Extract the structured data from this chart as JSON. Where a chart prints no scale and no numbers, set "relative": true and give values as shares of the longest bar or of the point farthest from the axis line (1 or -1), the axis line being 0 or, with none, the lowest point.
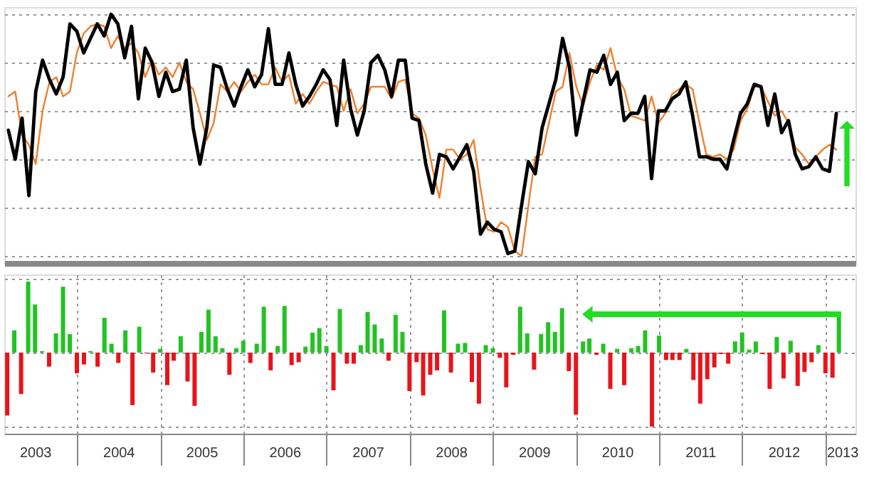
{
  "chart_data": [
    {
      "type": "line",
      "relative": true,
      "grid": "y",
      "tick_labels": false,
      "categories": [
        null,
        null,
        null,
        null,
        null,
        null,
        null,
        null,
        null,
        null,
        null,
        null,
        null,
        null,
        null,
        null,
        null,
        null,
        null,
        null,
        null,
        null,
        null,
        null,
        null,
        null,
        null,
        null,
        null,
        null,
        null,
        null,
        null,
        null,
        null,
        null,
        null,
        null,
        null,
        null,
        null,
        null,
        null,
        null,
        null,
        null,
        null,
        null,
        null,
        null,
        null,
        null,
        null,
        null,
        null,
        null,
        null,
        null,
        null,
        null,
        null,
        null,
        null,
        null,
        null,
        null,
        null,
        null,
        null,
        null,
        null,
        null,
        null,
        null,
        null,
        null,
        null,
        null,
        null,
        null,
        null,
        null,
        null,
        null,
        null,
        null,
        null,
        null,
        null,
        null,
        null,
        null,
        null,
        null,
        null,
        null,
        null,
        null,
        null,
        null,
        null,
        null,
        null,
        null,
        null,
        null,
        null,
        null,
        null,
        null,
        null,
        null,
        null,
        null,
        null,
        null,
        null,
        null,
        null,
        null,
        null,
        null
      ],
      "series": [
        {
          "color": "#f07f2c",
          "values": [
            0.66,
            0.68,
            0.5,
            0.46,
            0.38,
            0.6,
            0.72,
            0.74,
            0.66,
            0.68,
            0.84,
            0.92,
            0.95,
            0.96,
            0.95,
            0.86,
            0.91,
            0.86,
            0.88,
            0.84,
            0.74,
            0.81,
            0.75,
            0.78,
            0.74,
            0.8,
            0.72,
            0.69,
            0.59,
            0.48,
            0.55,
            0.71,
            0.68,
            0.72,
            0.68,
            0.72,
            0.75,
            0.71,
            0.71,
            0.78,
            0.72,
            0.75,
            0.63,
            0.67,
            0.63,
            0.68,
            0.72,
            0.71,
            0.7,
            0.6,
            0.69,
            0.59,
            0.63,
            0.7,
            0.7,
            0.7,
            0.65,
            0.72,
            0.73,
            0.59,
            0.57,
            0.5,
            0.36,
            0.24,
            0.44,
            0.44,
            0.4,
            0.42,
            0.48,
            0.28,
            0.11,
            0.1,
            0.14,
            0.12,
            0.02,
            0.0,
            0.21,
            0.41,
            0.42,
            0.55,
            0.68,
            0.7,
            0.84,
            0.7,
            0.62,
            0.72,
            0.79,
            0.77,
            0.86,
            0.74,
            0.69,
            0.58,
            0.57,
            0.56,
            0.66,
            0.55,
            0.59,
            0.67,
            0.69,
            0.71,
            0.69,
            0.55,
            0.42,
            0.41,
            0.42,
            0.4,
            0.44,
            0.56,
            0.61,
            0.7,
            0.7,
            0.64,
            0.58,
            0.6,
            0.55,
            0.45,
            0.42,
            0.38,
            0.41,
            0.44,
            0.46,
            0.44
          ]
        },
        {
          "color": "#000000",
          "values": [
            0.52,
            0.4,
            0.57,
            0.25,
            0.68,
            0.81,
            0.73,
            0.67,
            0.74,
            0.96,
            0.93,
            0.84,
            0.9,
            0.96,
            0.91,
            1.0,
            0.96,
            0.82,
            0.95,
            0.65,
            0.86,
            0.8,
            0.66,
            0.76,
            0.68,
            0.69,
            0.81,
            0.53,
            0.38,
            0.53,
            0.79,
            0.78,
            0.69,
            0.62,
            0.7,
            0.77,
            0.7,
            0.75,
            0.94,
            0.71,
            0.71,
            0.84,
            0.71,
            0.62,
            0.66,
            0.71,
            0.77,
            0.73,
            0.54,
            0.81,
            0.61,
            0.5,
            0.6,
            0.8,
            0.83,
            0.77,
            0.66,
            0.81,
            0.81,
            0.57,
            0.56,
            0.38,
            0.26,
            0.42,
            0.41,
            0.36,
            0.41,
            0.46,
            0.35,
            0.09,
            0.14,
            0.11,
            0.1,
            0.01,
            0.02,
            0.21,
            0.39,
            0.34,
            0.53,
            0.63,
            0.73,
            0.9,
            0.78,
            0.5,
            0.64,
            0.77,
            0.76,
            0.83,
            0.71,
            0.76,
            0.56,
            0.59,
            0.59,
            0.66,
            0.32,
            0.6,
            0.6,
            0.65,
            0.67,
            0.72,
            0.58,
            0.41,
            0.41,
            0.4,
            0.4,
            0.36,
            0.48,
            0.59,
            0.63,
            0.71,
            0.7,
            0.54,
            0.67,
            0.51,
            0.56,
            0.42,
            0.36,
            0.37,
            0.41,
            0.36,
            0.35,
            0.59
          ]
        }
      ]
    },
    {
      "type": "bar",
      "relative": true,
      "grid": true,
      "tick_labels": "x",
      "x": [
        "2003-03",
        "2003-04",
        "2003-05",
        "2003-06",
        "2003-07",
        "2003-08",
        "2003-09",
        "2003-10",
        "2003-11",
        "2003-12",
        "2004-01",
        "2004-02",
        "2004-03",
        "2004-04",
        "2004-05",
        "2004-06",
        "2004-07",
        "2004-08",
        "2004-09",
        "2004-10",
        "2004-11",
        "2004-12",
        "2005-01",
        "2005-02",
        "2005-03",
        "2005-04",
        "2005-05",
        "2005-06",
        "2005-07",
        "2005-08",
        "2005-09",
        "2005-10",
        "2005-11",
        "2005-12",
        "2006-01",
        "2006-02",
        "2006-03",
        "2006-04",
        "2006-05",
        "2006-06",
        "2006-07",
        "2006-08",
        "2006-09",
        "2006-10",
        "2006-11",
        "2006-12",
        "2007-01",
        "2007-02",
        "2007-03",
        "2007-04",
        "2007-05",
        "2007-06",
        "2007-07",
        "2007-08",
        "2007-09",
        "2007-10",
        "2007-11",
        "2007-12",
        "2008-01",
        "2008-02",
        "2008-03",
        "2008-04",
        "2008-05",
        "2008-06",
        "2008-07",
        "2008-08",
        "2008-09",
        "2008-10",
        "2008-11",
        "2008-12",
        "2009-01",
        "2009-02",
        "2009-03",
        "2009-04",
        "2009-05",
        "2009-06",
        "2009-07",
        "2009-08",
        "2009-09",
        "2009-10",
        "2009-11",
        "2009-12",
        "2010-01",
        "2010-02",
        "2010-03",
        "2010-04",
        "2010-05",
        "2010-06",
        "2010-07",
        "2010-08",
        "2010-09",
        "2010-10",
        "2010-11",
        "2010-12",
        "2011-01",
        "2011-02",
        "2011-03",
        "2011-04",
        "2011-05",
        "2011-06",
        "2011-07",
        "2011-08",
        "2011-09",
        "2011-10",
        "2011-11",
        "2011-12",
        "2012-01",
        "2012-02",
        "2012-03",
        "2012-04",
        "2012-05",
        "2012-06",
        "2012-07",
        "2012-08",
        "2012-09",
        "2012-10",
        "2012-11",
        "2012-12",
        "2013-01",
        "2013-02",
        "2013-03"
      ],
      "xlim": [
        "2003-02-16",
        "2013-05-13"
      ],
      "xticks": [
        {
          "value": "2003-07",
          "label": "2003"
        },
        {
          "value": "2004-01",
          "label": null
        },
        {
          "value": "2004-07",
          "label": "2004"
        },
        {
          "value": "2005-01",
          "label": null
        },
        {
          "value": "2005-07",
          "label": "2005"
        },
        {
          "value": "2006-01",
          "label": null
        },
        {
          "value": "2006-07",
          "label": "2006"
        },
        {
          "value": "2007-01",
          "label": null
        },
        {
          "value": "2007-07",
          "label": "2007"
        },
        {
          "value": "2008-01",
          "label": null
        },
        {
          "value": "2008-07",
          "label": "2008"
        },
        {
          "value": "2009-01",
          "label": null
        },
        {
          "value": "2009-07",
          "label": "2009"
        },
        {
          "value": "2010-01",
          "label": null
        },
        {
          "value": "2010-07",
          "label": "2010"
        },
        {
          "value": "2011-01",
          "label": null
        },
        {
          "value": "2011-07",
          "label": "2011"
        },
        {
          "value": "2012-01",
          "label": null
        },
        {
          "value": "2012-07",
          "label": "2012"
        },
        {
          "value": "2013-01",
          "label": null
        },
        {
          "value": "2013-03-15",
          "label": "2013"
        }
      ],
      "values": [
        -0.85,
        0.3,
        -0.56,
        0.96,
        0.65,
        0.02,
        -0.19,
        0.26,
        0.89,
        0.25,
        -0.28,
        -0.16,
        0.02,
        -0.19,
        0.47,
        0.12,
        -0.14,
        0.3,
        -0.71,
        0.35,
        -0.01,
        -0.27,
        0.05,
        -0.44,
        -0.11,
        0.22,
        -0.39,
        -0.72,
        0.28,
        0.58,
        0.22,
        0.06,
        -0.3,
        0.06,
        0.16,
        -0.14,
        0.12,
        0.62,
        -0.24,
        0.09,
        0.63,
        -0.17,
        -0.13,
        0.08,
        0.27,
        0.33,
        0.09,
        -0.51,
        0.59,
        -0.15,
        -0.15,
        0.1,
        0.55,
        0.38,
        0.19,
        -0.11,
        0.51,
        0.28,
        -0.52,
        -0.13,
        -0.58,
        -0.3,
        -0.24,
        0.57,
        -0.27,
        0.12,
        0.13,
        -0.4,
        -0.69,
        0.1,
        0.06,
        -0.07,
        -0.47,
        -0.03,
        0.62,
        0.26,
        -0.23,
        0.25,
        0.41,
        0.28,
        0.6,
        -0.25,
        -0.84,
        0.15,
        0.19,
        -0.03,
        0.12,
        -0.49,
        0.05,
        -0.44,
        0.06,
        0.09,
        0.3,
        -1.0,
        0.23,
        -0.1,
        -0.1,
        -0.1,
        0.05,
        -0.37,
        -0.69,
        -0.36,
        -0.2,
        -0.02,
        -0.15,
        0.15,
        0.27,
        0.04,
        0.15,
        -0.02,
        -0.49,
        0.21,
        -0.35,
        0.16,
        -0.45,
        -0.26,
        -0.13,
        0.1,
        -0.28,
        -0.34,
        0.5
      ],
      "colors": [
        "#e8141b",
        "#22c322",
        "#e8141b",
        "#22c322",
        "#22c322",
        "#22c322",
        "#e8141b",
        "#22c322",
        "#22c322",
        "#22c322",
        "#e8141b",
        "#e8141b",
        "#22c322",
        "#e8141b",
        "#22c322",
        "#22c322",
        "#e8141b",
        "#22c322",
        "#e8141b",
        "#22c322",
        "#e8141b",
        "#e8141b",
        "#22c322",
        "#e8141b",
        "#e8141b",
        "#22c322",
        "#e8141b",
        "#e8141b",
        "#22c322",
        "#22c322",
        "#22c322",
        "#22c322",
        "#e8141b",
        "#22c322",
        "#22c322",
        "#e8141b",
        "#22c322",
        "#22c322",
        "#e8141b",
        "#22c322",
        "#22c322",
        "#e8141b",
        "#e8141b",
        "#22c322",
        "#22c322",
        "#22c322",
        "#22c322",
        "#e8141b",
        "#22c322",
        "#e8141b",
        "#e8141b",
        "#22c322",
        "#22c322",
        "#22c322",
        "#22c322",
        "#e8141b",
        "#22c322",
        "#22c322",
        "#e8141b",
        "#e8141b",
        "#e8141b",
        "#e8141b",
        "#e8141b",
        "#22c322",
        "#e8141b",
        "#22c322",
        "#22c322",
        "#e8141b",
        "#e8141b",
        "#22c322",
        "#22c322",
        "#e8141b",
        "#e8141b",
        "#e8141b",
        "#22c322",
        "#22c322",
        "#e8141b",
        "#22c322",
        "#22c322",
        "#22c322",
        "#22c322",
        "#e8141b",
        "#e8141b",
        "#22c322",
        "#22c322",
        "#e8141b",
        "#22c322",
        "#e8141b",
        "#22c322",
        "#e8141b",
        "#22c322",
        "#22c322",
        "#22c322",
        "#e8141b",
        "#22c322",
        "#e8141b",
        "#e8141b",
        "#e8141b",
        "#22c322",
        "#e8141b",
        "#e8141b",
        "#e8141b",
        "#e8141b",
        "#e8141b",
        "#e8141b",
        "#22c322",
        "#22c322",
        "#22c322",
        "#22c322",
        "#e8141b",
        "#e8141b",
        "#22c322",
        "#e8141b",
        "#22c322",
        "#e8141b",
        "#e8141b",
        "#e8141b",
        "#22c322",
        "#e8141b",
        "#e8141b",
        "#22c322"
      ]
    }
  ]
}
